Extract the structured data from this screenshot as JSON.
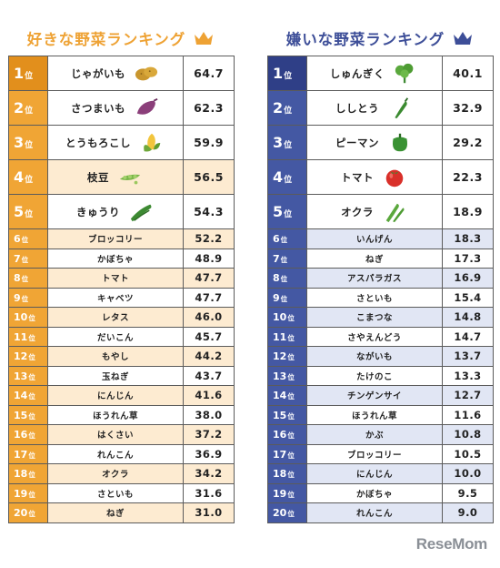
{
  "chart_data": [
    {
      "type": "table",
      "title": "好きな野菜ランキング",
      "rank_suffix": "位",
      "rows": [
        {
          "rank": "1",
          "name": "じゃがいも",
          "value": "64.7",
          "icon": "potato-icon"
        },
        {
          "rank": "2",
          "name": "さつまいも",
          "value": "62.3",
          "icon": "sweet-potato-icon"
        },
        {
          "rank": "3",
          "name": "とうもろこし",
          "value": "59.9",
          "icon": "corn-icon"
        },
        {
          "rank": "4",
          "name": "枝豆",
          "value": "56.5",
          "icon": "edamame-icon"
        },
        {
          "rank": "5",
          "name": "きゅうり",
          "value": "54.3",
          "icon": "cucumber-icon"
        },
        {
          "rank": "6",
          "name": "ブロッコリー",
          "value": "52.2"
        },
        {
          "rank": "7",
          "name": "かぼちゃ",
          "value": "48.9"
        },
        {
          "rank": "8",
          "name": "トマト",
          "value": "47.7"
        },
        {
          "rank": "9",
          "name": "キャベツ",
          "value": "47.7"
        },
        {
          "rank": "10",
          "name": "レタス",
          "value": "46.0"
        },
        {
          "rank": "11",
          "name": "だいこん",
          "value": "45.7"
        },
        {
          "rank": "12",
          "name": "もやし",
          "value": "44.2"
        },
        {
          "rank": "13",
          "name": "玉ねぎ",
          "value": "43.7"
        },
        {
          "rank": "14",
          "name": "にんじん",
          "value": "41.6"
        },
        {
          "rank": "15",
          "name": "ほうれん草",
          "value": "38.0"
        },
        {
          "rank": "16",
          "name": "はくさい",
          "value": "37.2"
        },
        {
          "rank": "17",
          "name": "れんこん",
          "value": "36.9"
        },
        {
          "rank": "18",
          "name": "オクラ",
          "value": "34.2"
        },
        {
          "rank": "19",
          "name": "さといも",
          "value": "31.6"
        },
        {
          "rank": "20",
          "name": "ねぎ",
          "value": "31.0"
        }
      ]
    },
    {
      "type": "table",
      "title": "嫌いな野菜ランキング",
      "rank_suffix": "位",
      "rows": [
        {
          "rank": "1",
          "name": "しゅんぎく",
          "value": "40.1",
          "icon": "shungiku-icon"
        },
        {
          "rank": "2",
          "name": "ししとう",
          "value": "32.9",
          "icon": "shishito-icon"
        },
        {
          "rank": "3",
          "name": "ピーマン",
          "value": "29.2",
          "icon": "green-pepper-icon"
        },
        {
          "rank": "4",
          "name": "トマト",
          "value": "22.3",
          "icon": "tomato-icon"
        },
        {
          "rank": "5",
          "name": "オクラ",
          "value": "18.9",
          "icon": "okra-icon"
        },
        {
          "rank": "6",
          "name": "いんげん",
          "value": "18.3"
        },
        {
          "rank": "7",
          "name": "ねぎ",
          "value": "17.3"
        },
        {
          "rank": "8",
          "name": "アスパラガス",
          "value": "16.9"
        },
        {
          "rank": "9",
          "name": "さといも",
          "value": "15.4"
        },
        {
          "rank": "10",
          "name": "こまつな",
          "value": "14.8"
        },
        {
          "rank": "11",
          "name": "さやえんどう",
          "value": "14.7"
        },
        {
          "rank": "12",
          "name": "ながいも",
          "value": "13.7"
        },
        {
          "rank": "13",
          "name": "たけのこ",
          "value": "13.3"
        },
        {
          "rank": "14",
          "name": "チンゲンサイ",
          "value": "12.7"
        },
        {
          "rank": "15",
          "name": "ほうれん草",
          "value": "11.6"
        },
        {
          "rank": "16",
          "name": "かぶ",
          "value": "10.8"
        },
        {
          "rank": "17",
          "name": "ブロッコリー",
          "value": "10.5"
        },
        {
          "rank": "18",
          "name": "にんじん",
          "value": "10.0"
        },
        {
          "rank": "19",
          "name": "かぼちゃ",
          "value": "9.5"
        },
        {
          "rank": "20",
          "name": "れんこん",
          "value": "9.0"
        }
      ]
    }
  ],
  "colors": {
    "like_accent": "#f0a535",
    "like_row_tint": "#fdebd1",
    "dislike_accent": "#4458a3",
    "dislike_row_tint": "#e1e6f4"
  },
  "brand": "ReseMom"
}
